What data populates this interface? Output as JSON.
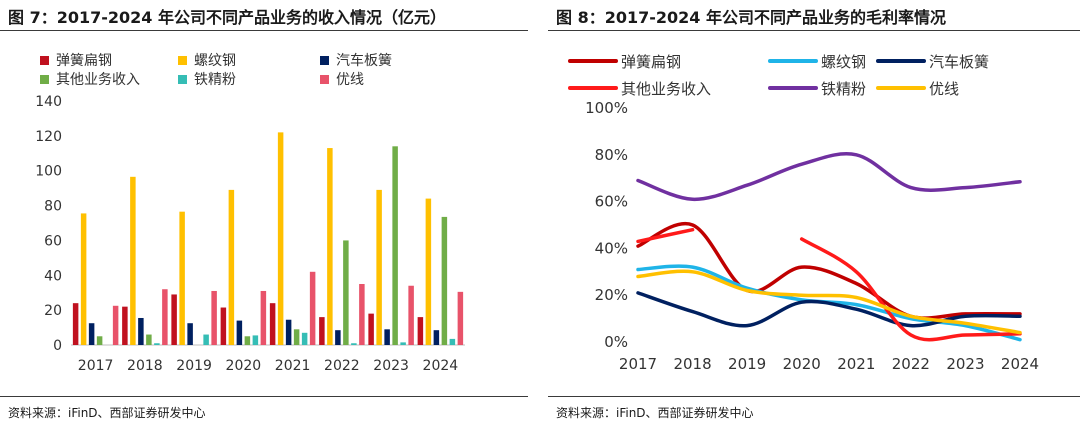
{
  "charts": [
    {
      "figure_title": "图 7：2017-2024 年公司不同产品业务的收入情况（亿元）",
      "source": "资料来源：iFinD、西部证券研发中心"
    },
    {
      "figure_title": "图 8：2017-2024 年公司不同产品业务的毛利率情况",
      "source": "资料来源：iFinD、西部证券研发中心"
    }
  ],
  "chart_data": [
    {
      "type": "bar",
      "title": "图 7：2017-2024 年公司不同产品业务的收入情况（亿元）",
      "categories": [
        "2017",
        "2018",
        "2019",
        "2020",
        "2021",
        "2022",
        "2023",
        "2024"
      ],
      "ylim": [
        0,
        140
      ],
      "yticks": [
        0,
        20,
        40,
        60,
        80,
        100,
        120,
        140
      ],
      "grid": false,
      "legend": "top",
      "series": [
        {
          "name": "弹簧扁钢",
          "color": "#c0111f",
          "values": [
            24,
            22,
            29,
            21.5,
            24,
            16,
            18,
            16
          ]
        },
        {
          "name": "螺纹钢",
          "color": "#ffc000",
          "values": [
            75.5,
            96.5,
            76.5,
            89,
            122,
            113,
            89,
            84
          ]
        },
        {
          "name": "汽车板簧",
          "color": "#002060",
          "values": [
            12.5,
            15.5,
            12.5,
            14,
            14.5,
            8.5,
            9,
            8.5
          ]
        },
        {
          "name": "其他业务收入",
          "color": "#70ad47",
          "values": [
            5,
            6,
            0,
            5,
            9,
            60,
            114,
            73.5
          ]
        },
        {
          "name": "铁精粉",
          "color": "#35bdb5",
          "values": [
            0,
            1,
            6,
            5.5,
            7,
            1,
            1.5,
            3.5
          ]
        },
        {
          "name": "优线",
          "color": "#e8536a",
          "values": [
            22.5,
            32,
            31,
            31,
            42,
            35,
            34,
            30.5
          ]
        }
      ]
    },
    {
      "type": "line",
      "title": "图 8：2017-2024 年公司不同产品业务的毛利率情况",
      "categories": [
        "2017",
        "2018",
        "2019",
        "2020",
        "2021",
        "2022",
        "2023",
        "2024"
      ],
      "ylim": [
        0,
        100
      ],
      "yticks": [
        "0%",
        "20%",
        "40%",
        "60%",
        "80%",
        "100%"
      ],
      "grid": false,
      "legend": "top",
      "series": [
        {
          "name": "弹簧扁钢",
          "color": "#c00000",
          "values": [
            41,
            50,
            22,
            32,
            25,
            11,
            12,
            12
          ]
        },
        {
          "name": "螺纹钢",
          "color": "#1fb4e8",
          "values": [
            31,
            32,
            23,
            18,
            16,
            10,
            7,
            1
          ]
        },
        {
          "name": "汽车板簧",
          "color": "#002060",
          "values": [
            21,
            13,
            7,
            17,
            14,
            7,
            11,
            11
          ]
        },
        {
          "name": "其他业务收入",
          "color": "#ff1a1a",
          "values": [
            43,
            48,
            null,
            44,
            30,
            3,
            3,
            3.5
          ]
        },
        {
          "name": "铁精粉",
          "color": "#7030a0",
          "values": [
            69,
            61,
            67,
            76,
            80,
            66,
            66,
            68.5
          ]
        },
        {
          "name": "优线",
          "color": "#ffc000",
          "values": [
            28,
            30,
            22,
            20,
            19,
            11,
            8,
            4
          ]
        }
      ]
    }
  ]
}
